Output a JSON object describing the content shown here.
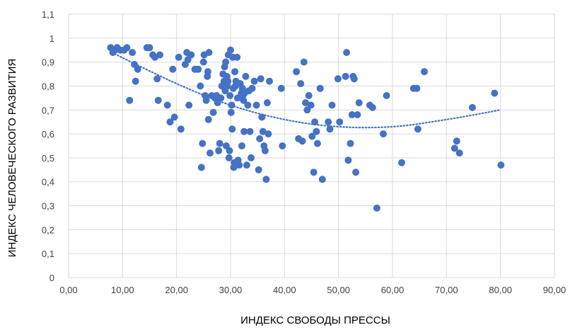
{
  "chart_data": {
    "type": "scatter",
    "title": "",
    "xlabel": "ИНДЕКС СВОБОДЫ ПРЕССЫ",
    "ylabel": "ИНДЕКС ЧЕЛОВЕЧЕСКОГО РАЗВИТИЯ",
    "xlim": [
      0,
      90
    ],
    "ylim": [
      0,
      1.1
    ],
    "x_ticks": [
      0,
      10,
      20,
      30,
      40,
      50,
      60,
      70,
      80,
      90
    ],
    "x_tick_labels": [
      "0,00",
      "10,00",
      "20,00",
      "30,00",
      "40,00",
      "50,00",
      "60,00",
      "70,00",
      "80,00",
      "90,00"
    ],
    "y_ticks": [
      0,
      0.1,
      0.2,
      0.3,
      0.4,
      0.5,
      0.6,
      0.7,
      0.8,
      0.9,
      1,
      1.1
    ],
    "y_tick_labels": [
      "0",
      "0,1",
      "0,2",
      "0,3",
      "0,4",
      "0,5",
      "0,6",
      "0,7",
      "0,8",
      "0,9",
      "1",
      "1,1"
    ],
    "grid": true,
    "legend": "none",
    "marker_color": "#4472C4",
    "trendline": {
      "type": "polynomial",
      "style": "dotted",
      "color": "#4472C4",
      "x_range": [
        8,
        80
      ],
      "points": [
        [
          8,
          0.94
        ],
        [
          20,
          0.81
        ],
        [
          30,
          0.72
        ],
        [
          40,
          0.66
        ],
        [
          50,
          0.63
        ],
        [
          60,
          0.63
        ],
        [
          70,
          0.66
        ],
        [
          80,
          0.7
        ]
      ]
    },
    "series": [
      {
        "points": [
          [
            7.8,
            0.96
          ],
          [
            8.2,
            0.94
          ],
          [
            8.6,
            0.95
          ],
          [
            9.0,
            0.96
          ],
          [
            9.6,
            0.95
          ],
          [
            10.3,
            0.95
          ],
          [
            10.8,
            0.96
          ],
          [
            11.3,
            0.74
          ],
          [
            11.8,
            0.94
          ],
          [
            12.2,
            0.89
          ],
          [
            12.4,
            0.82
          ],
          [
            12.8,
            0.87
          ],
          [
            14.5,
            0.96
          ],
          [
            15.0,
            0.96
          ],
          [
            15.6,
            0.93
          ],
          [
            16.0,
            0.92
          ],
          [
            16.4,
            0.83
          ],
          [
            16.6,
            0.74
          ],
          [
            16.9,
            0.93
          ],
          [
            18.3,
            0.72
          ],
          [
            18.8,
            0.65
          ],
          [
            19.3,
            0.87
          ],
          [
            19.6,
            0.67
          ],
          [
            20.4,
            0.92
          ],
          [
            20.8,
            0.62
          ],
          [
            21.6,
            0.89
          ],
          [
            21.9,
            0.94
          ],
          [
            22.1,
            0.91
          ],
          [
            22.3,
            0.72
          ],
          [
            22.7,
            0.93
          ],
          [
            23.4,
            0.87
          ],
          [
            24.0,
            0.87
          ],
          [
            24.4,
            0.8
          ],
          [
            24.6,
            0.46
          ],
          [
            24.8,
            0.56
          ],
          [
            25.0,
            0.9
          ],
          [
            25.1,
            0.93
          ],
          [
            25.3,
            0.76
          ],
          [
            25.5,
            0.74
          ],
          [
            25.7,
            0.84
          ],
          [
            25.8,
            0.86
          ],
          [
            25.9,
            0.66
          ],
          [
            26.0,
            0.94
          ],
          [
            26.2,
            0.52
          ],
          [
            26.5,
            0.76
          ],
          [
            26.8,
            0.69
          ],
          [
            27.1,
            0.75
          ],
          [
            27.4,
            0.76
          ],
          [
            27.6,
            0.73
          ],
          [
            27.8,
            0.53
          ],
          [
            28.0,
            0.56
          ],
          [
            28.2,
            0.75
          ],
          [
            28.4,
            0.8
          ],
          [
            28.6,
            0.85
          ],
          [
            28.8,
            0.82
          ],
          [
            28.9,
            0.88
          ],
          [
            29.0,
            0.78
          ],
          [
            29.1,
            0.9
          ],
          [
            29.2,
            0.55
          ],
          [
            29.3,
            0.84
          ],
          [
            29.4,
            0.8
          ],
          [
            29.5,
            0.82
          ],
          [
            29.6,
            0.93
          ],
          [
            29.7,
            0.5
          ],
          [
            29.8,
            0.53
          ],
          [
            29.9,
            0.76
          ],
          [
            30.0,
            0.95
          ],
          [
            30.1,
            0.69
          ],
          [
            30.2,
            0.72
          ],
          [
            30.3,
            0.62
          ],
          [
            30.4,
            0.92
          ],
          [
            30.5,
            0.79
          ],
          [
            30.6,
            0.46
          ],
          [
            30.7,
            0.48
          ],
          [
            30.8,
            0.86
          ],
          [
            30.9,
            0.8
          ],
          [
            31.0,
            0.82
          ],
          [
            31.2,
            0.92
          ],
          [
            31.3,
            0.75
          ],
          [
            31.4,
            0.49
          ],
          [
            31.6,
            0.47
          ],
          [
            31.8,
            0.81
          ],
          [
            32.0,
            0.77
          ],
          [
            32.1,
            0.55
          ],
          [
            32.2,
            0.79
          ],
          [
            32.3,
            0.76
          ],
          [
            32.4,
            0.74
          ],
          [
            32.5,
            0.61
          ],
          [
            32.6,
            0.77
          ],
          [
            32.8,
            0.84
          ],
          [
            33.0,
            0.47
          ],
          [
            33.2,
            0.72
          ],
          [
            33.4,
            0.78
          ],
          [
            33.6,
            0.61
          ],
          [
            33.8,
            0.5
          ],
          [
            34.0,
            0.79
          ],
          [
            34.4,
            0.82
          ],
          [
            34.8,
            0.72
          ],
          [
            35.2,
            0.45
          ],
          [
            35.4,
            0.58
          ],
          [
            35.6,
            0.83
          ],
          [
            35.8,
            0.67
          ],
          [
            36.0,
            0.61
          ],
          [
            36.2,
            0.55
          ],
          [
            36.4,
            0.53
          ],
          [
            36.6,
            0.41
          ],
          [
            36.8,
            0.73
          ],
          [
            37.0,
            0.6
          ],
          [
            37.2,
            0.82
          ],
          [
            39.4,
            0.79
          ],
          [
            39.6,
            0.55
          ],
          [
            42.2,
            0.86
          ],
          [
            42.6,
            0.58
          ],
          [
            43.0,
            0.81
          ],
          [
            43.3,
            0.57
          ],
          [
            43.6,
            0.9
          ],
          [
            43.9,
            0.73
          ],
          [
            44.2,
            0.7
          ],
          [
            44.5,
            0.76
          ],
          [
            44.9,
            0.72
          ],
          [
            45.1,
            0.59
          ],
          [
            45.4,
            0.44
          ],
          [
            45.6,
            0.65
          ],
          [
            45.9,
            0.61
          ],
          [
            46.1,
            0.56
          ],
          [
            46.6,
            0.79
          ],
          [
            47.0,
            0.41
          ],
          [
            48.1,
            0.65
          ],
          [
            48.4,
            0.62
          ],
          [
            48.8,
            0.72
          ],
          [
            49.9,
            0.83
          ],
          [
            50.2,
            0.65
          ],
          [
            51.3,
            0.84
          ],
          [
            51.5,
            0.94
          ],
          [
            51.8,
            0.49
          ],
          [
            52.2,
            0.56
          ],
          [
            52.5,
            0.68
          ],
          [
            52.7,
            0.84
          ],
          [
            52.9,
            0.83
          ],
          [
            53.2,
            0.44
          ],
          [
            53.5,
            0.68
          ],
          [
            53.8,
            0.73
          ],
          [
            55.8,
            0.72
          ],
          [
            56.3,
            0.71
          ],
          [
            57.1,
            0.29
          ],
          [
            58.3,
            0.6
          ],
          [
            58.9,
            0.76
          ],
          [
            61.7,
            0.48
          ],
          [
            63.9,
            0.79
          ],
          [
            64.5,
            0.79
          ],
          [
            64.7,
            0.62
          ],
          [
            65.9,
            0.86
          ],
          [
            71.5,
            0.54
          ],
          [
            71.9,
            0.57
          ],
          [
            72.4,
            0.52
          ],
          [
            74.8,
            0.71
          ],
          [
            78.9,
            0.77
          ],
          [
            80.1,
            0.47
          ]
        ]
      }
    ]
  }
}
